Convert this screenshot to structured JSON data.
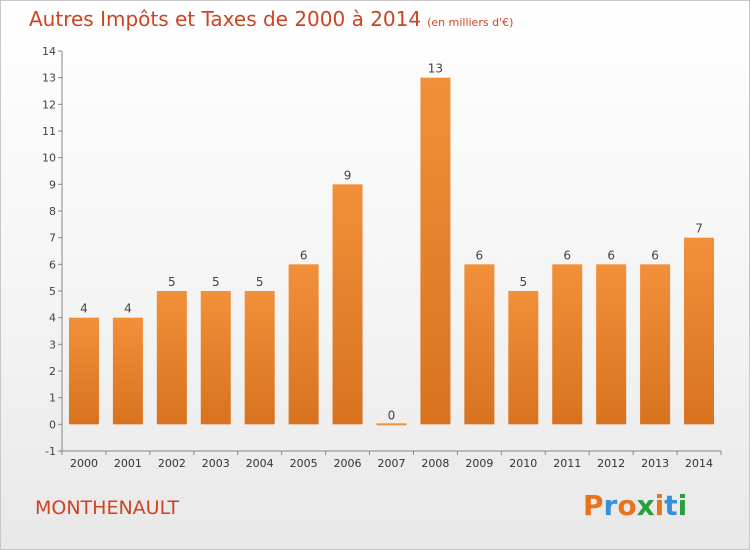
{
  "chart_data": {
    "type": "bar",
    "title": "Autres Impôts et Taxes de 2000 à 2014",
    "unit_label": "(en milliers d'€)",
    "categories": [
      "2000",
      "2001",
      "2002",
      "2003",
      "2004",
      "2005",
      "2006",
      "2007",
      "2008",
      "2009",
      "2010",
      "2011",
      "2012",
      "2013",
      "2014"
    ],
    "values": [
      4,
      4,
      5,
      5,
      5,
      6,
      9,
      0,
      13,
      6,
      5,
      6,
      6,
      6,
      7
    ],
    "ylim": [
      -1,
      14
    ],
    "yticks": [
      -1,
      0,
      1,
      2,
      3,
      4,
      5,
      6,
      7,
      8,
      9,
      10,
      11,
      12,
      13,
      14
    ],
    "grid": false,
    "bar_color": "#f2903a",
    "bar_color_dark": "#d8721f"
  },
  "footer": {
    "town": "MONTHENAULT"
  },
  "logo": {
    "letters": [
      "P",
      "r",
      "o",
      "x",
      "i",
      "t",
      "i"
    ],
    "colors": [
      "#e8731a",
      "#3b8fd6",
      "#e8731a",
      "#2a9d3c",
      "#e8731a",
      "#3b8fd6",
      "#2a9d3c"
    ]
  }
}
